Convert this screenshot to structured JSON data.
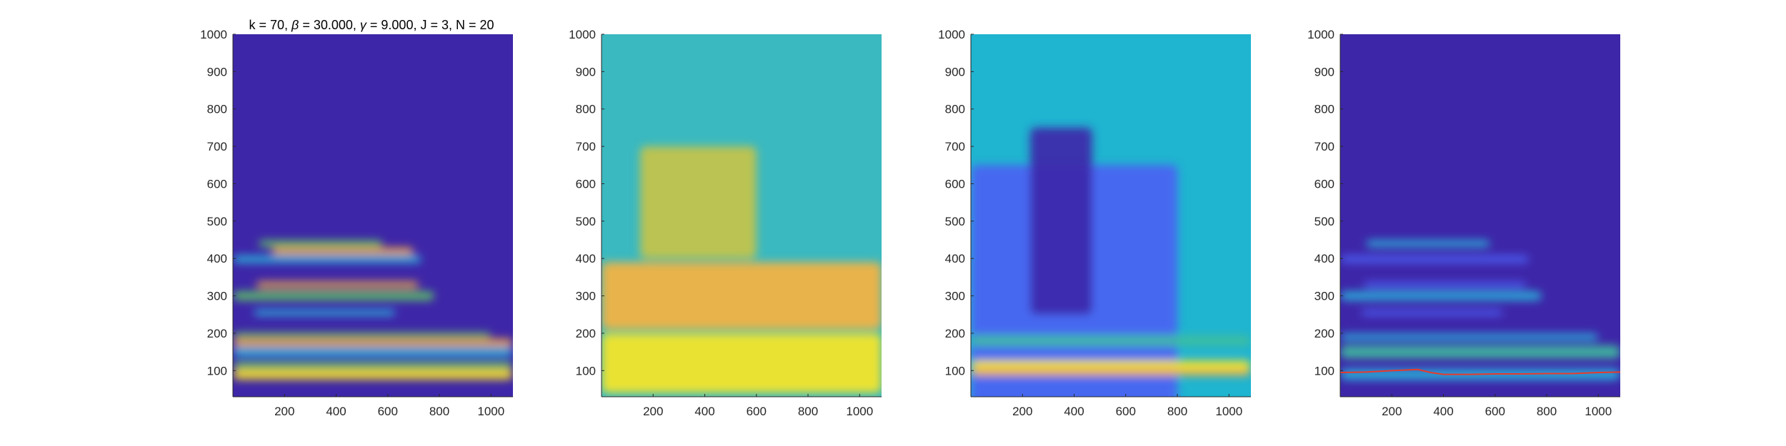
{
  "figure": {
    "title_parts": [
      "k = 70, ",
      "β",
      " = 30.000, ",
      "γ",
      " = 9.000, J = 3, N = 20"
    ]
  },
  "colors": {
    "low": "#3e26a8",
    "blue": "#4a61f4",
    "cyan": "#2ab6da",
    "green": "#5cc863",
    "yellow": "#fde725",
    "orange": "#fbb33d",
    "ridge": "#e83a2b"
  },
  "chart_data": [
    {
      "type": "heatmap",
      "title": "k = 70, β = 30.000, γ = 9.000, J = 3, N = 20",
      "xlim": [
        0,
        1085
      ],
      "ylim": [
        30,
        1000
      ],
      "x_ticks": [
        200,
        400,
        600,
        800,
        1000
      ],
      "y_ticks": [
        100,
        200,
        300,
        400,
        500,
        600,
        700,
        800,
        900,
        1000
      ],
      "background": "#3e26a8",
      "bands": [
        {
          "y": 90,
          "h": 28,
          "x0": 0,
          "x1": 1085,
          "color": "#fde725"
        },
        {
          "y": 115,
          "h": 18,
          "x0": 0,
          "x1": 1085,
          "color": "#5cc863"
        },
        {
          "y": 150,
          "h": 25,
          "x0": 0,
          "x1": 1085,
          "color": "#2ab6da"
        },
        {
          "y": 175,
          "h": 20,
          "x0": 0,
          "x1": 1085,
          "color": "#fbb33d"
        },
        {
          "y": 195,
          "h": 14,
          "x0": 0,
          "x1": 1000,
          "color": "#5cc863"
        },
        {
          "y": 255,
          "h": 16,
          "x0": 80,
          "x1": 630,
          "color": "#2ab6da"
        },
        {
          "y": 300,
          "h": 24,
          "x0": 0,
          "x1": 780,
          "color": "#5cc863"
        },
        {
          "y": 330,
          "h": 16,
          "x0": 90,
          "x1": 720,
          "color": "#fbb33d"
        },
        {
          "y": 398,
          "h": 20,
          "x0": 0,
          "x1": 730,
          "color": "#2ab6da"
        },
        {
          "y": 420,
          "h": 18,
          "x0": 150,
          "x1": 700,
          "color": "#fbb33d"
        },
        {
          "y": 440,
          "h": 18,
          "x0": 100,
          "x1": 580,
          "color": "#5cc863"
        }
      ]
    },
    {
      "type": "heatmap",
      "xlim": [
        0,
        1085
      ],
      "ylim": [
        30,
        1000
      ],
      "x_ticks": [
        200,
        400,
        600,
        800,
        1000
      ],
      "y_ticks": [
        100,
        200,
        300,
        400,
        500,
        600,
        700,
        800,
        900,
        1000
      ],
      "background": "#3ab9c0",
      "bands": [
        {
          "y": 120,
          "h": 160,
          "x0": 0,
          "x1": 1085,
          "color": "#fde725"
        },
        {
          "y": 300,
          "h": 180,
          "x0": 0,
          "x1": 1085,
          "color": "#fbb33d"
        },
        {
          "y": 550,
          "h": 300,
          "x0": 150,
          "x1": 600,
          "color": "#c9c445"
        }
      ]
    },
    {
      "type": "heatmap",
      "xlim": [
        0,
        1085
      ],
      "ylim": [
        30,
        1000
      ],
      "x_ticks": [
        200,
        400,
        600,
        800,
        1000
      ],
      "y_ticks": [
        100,
        200,
        300,
        400,
        500,
        600,
        700,
        800,
        900,
        1000
      ],
      "background": "#1fb4d0",
      "bands": [
        {
          "y": 300,
          "h": 700,
          "x0": 0,
          "x1": 800,
          "color": "#4a61f4"
        },
        {
          "y": 500,
          "h": 500,
          "x0": 230,
          "x1": 470,
          "color": "#3e26a8"
        },
        {
          "y": 180,
          "h": 30,
          "x0": 0,
          "x1": 1085,
          "color": "#3fbf9f"
        },
        {
          "y": 115,
          "h": 25,
          "x0": 0,
          "x1": 1085,
          "color": "#fde725"
        },
        {
          "y": 95,
          "h": 18,
          "x0": 0,
          "x1": 1085,
          "color": "#fbb33d"
        }
      ]
    },
    {
      "type": "heatmap",
      "xlim": [
        0,
        1085
      ],
      "ylim": [
        30,
        1000
      ],
      "x_ticks": [
        200,
        400,
        600,
        800,
        1000
      ],
      "y_ticks": [
        100,
        200,
        300,
        400,
        500,
        600,
        700,
        800,
        900,
        1000
      ],
      "background": "#3e26a8",
      "bands": [
        {
          "y": 90,
          "h": 30,
          "x0": 0,
          "x1": 1085,
          "color": "#2ab6da"
        },
        {
          "y": 150,
          "h": 35,
          "x0": 0,
          "x1": 1085,
          "color": "#3fbf9f"
        },
        {
          "y": 190,
          "h": 18,
          "x0": 0,
          "x1": 1000,
          "color": "#2ab6da"
        },
        {
          "y": 255,
          "h": 16,
          "x0": 80,
          "x1": 630,
          "color": "#4a61f4"
        },
        {
          "y": 300,
          "h": 24,
          "x0": 0,
          "x1": 780,
          "color": "#2ab6da"
        },
        {
          "y": 330,
          "h": 16,
          "x0": 90,
          "x1": 720,
          "color": "#4a61f4"
        },
        {
          "y": 398,
          "h": 20,
          "x0": 0,
          "x1": 730,
          "color": "#4a61f4"
        },
        {
          "y": 440,
          "h": 18,
          "x0": 100,
          "x1": 580,
          "color": "#2ab6da"
        }
      ],
      "ridge_line": {
        "x": [
          0,
          100,
          200,
          300,
          350,
          400,
          500,
          600,
          700,
          800,
          900,
          1000,
          1085
        ],
        "y": [
          95,
          96,
          100,
          103,
          95,
          90,
          90,
          91,
          91,
          92,
          92,
          95,
          96
        ]
      }
    }
  ]
}
